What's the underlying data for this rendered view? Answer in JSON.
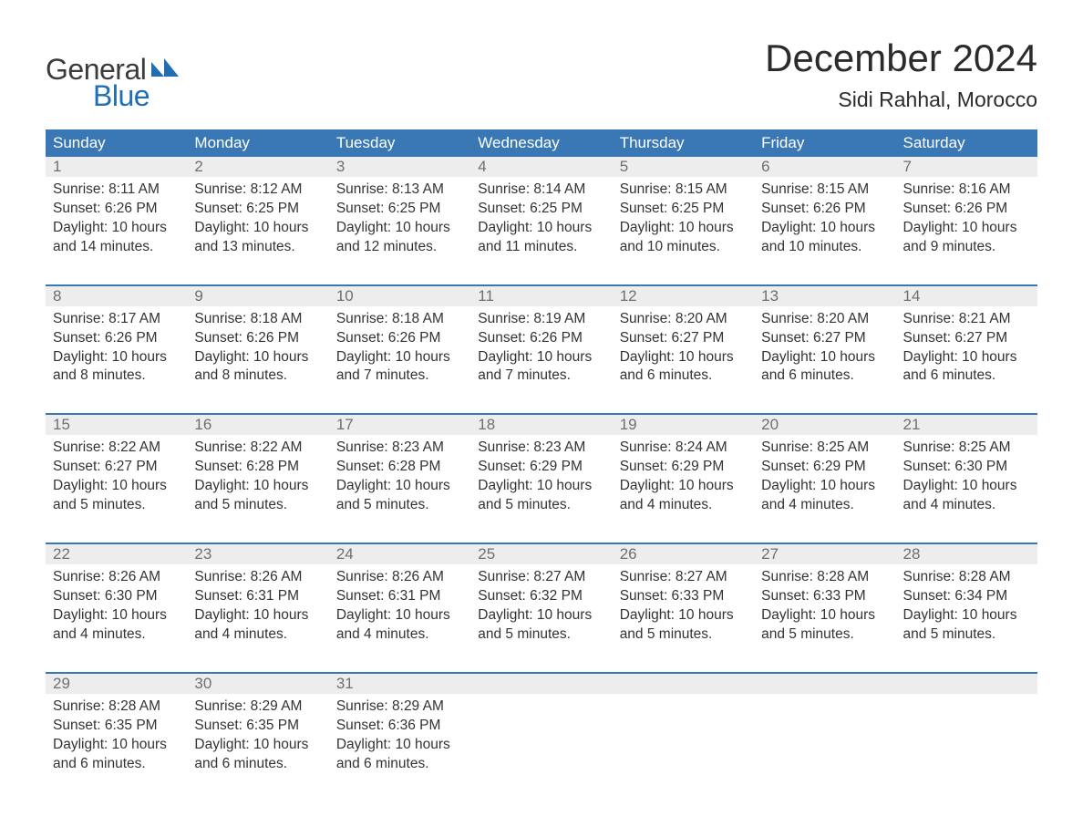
{
  "brand": {
    "word1": "General",
    "word2": "Blue",
    "logo_color": "#1f6fb2"
  },
  "title": "December 2024",
  "location": "Sidi Rahhal, Morocco",
  "colors": {
    "header_bg": "#3a78b5",
    "header_text": "#ffffff",
    "daynum_bg": "#ededed",
    "daynum_text": "#6f6f6f",
    "body_text": "#333333",
    "rule": "#3a78b5"
  },
  "dow": [
    "Sunday",
    "Monday",
    "Tuesday",
    "Wednesday",
    "Thursday",
    "Friday",
    "Saturday"
  ],
  "weeks": [
    [
      {
        "n": "1",
        "sr": "8:11 AM",
        "ss": "6:26 PM",
        "dl": "10 hours and 14 minutes."
      },
      {
        "n": "2",
        "sr": "8:12 AM",
        "ss": "6:25 PM",
        "dl": "10 hours and 13 minutes."
      },
      {
        "n": "3",
        "sr": "8:13 AM",
        "ss": "6:25 PM",
        "dl": "10 hours and 12 minutes."
      },
      {
        "n": "4",
        "sr": "8:14 AM",
        "ss": "6:25 PM",
        "dl": "10 hours and 11 minutes."
      },
      {
        "n": "5",
        "sr": "8:15 AM",
        "ss": "6:25 PM",
        "dl": "10 hours and 10 minutes."
      },
      {
        "n": "6",
        "sr": "8:15 AM",
        "ss": "6:26 PM",
        "dl": "10 hours and 10 minutes."
      },
      {
        "n": "7",
        "sr": "8:16 AM",
        "ss": "6:26 PM",
        "dl": "10 hours and 9 minutes."
      }
    ],
    [
      {
        "n": "8",
        "sr": "8:17 AM",
        "ss": "6:26 PM",
        "dl": "10 hours and 8 minutes."
      },
      {
        "n": "9",
        "sr": "8:18 AM",
        "ss": "6:26 PM",
        "dl": "10 hours and 8 minutes."
      },
      {
        "n": "10",
        "sr": "8:18 AM",
        "ss": "6:26 PM",
        "dl": "10 hours and 7 minutes."
      },
      {
        "n": "11",
        "sr": "8:19 AM",
        "ss": "6:26 PM",
        "dl": "10 hours and 7 minutes."
      },
      {
        "n": "12",
        "sr": "8:20 AM",
        "ss": "6:27 PM",
        "dl": "10 hours and 6 minutes."
      },
      {
        "n": "13",
        "sr": "8:20 AM",
        "ss": "6:27 PM",
        "dl": "10 hours and 6 minutes."
      },
      {
        "n": "14",
        "sr": "8:21 AM",
        "ss": "6:27 PM",
        "dl": "10 hours and 6 minutes."
      }
    ],
    [
      {
        "n": "15",
        "sr": "8:22 AM",
        "ss": "6:27 PM",
        "dl": "10 hours and 5 minutes."
      },
      {
        "n": "16",
        "sr": "8:22 AM",
        "ss": "6:28 PM",
        "dl": "10 hours and 5 minutes."
      },
      {
        "n": "17",
        "sr": "8:23 AM",
        "ss": "6:28 PM",
        "dl": "10 hours and 5 minutes."
      },
      {
        "n": "18",
        "sr": "8:23 AM",
        "ss": "6:29 PM",
        "dl": "10 hours and 5 minutes."
      },
      {
        "n": "19",
        "sr": "8:24 AM",
        "ss": "6:29 PM",
        "dl": "10 hours and 4 minutes."
      },
      {
        "n": "20",
        "sr": "8:25 AM",
        "ss": "6:29 PM",
        "dl": "10 hours and 4 minutes."
      },
      {
        "n": "21",
        "sr": "8:25 AM",
        "ss": "6:30 PM",
        "dl": "10 hours and 4 minutes."
      }
    ],
    [
      {
        "n": "22",
        "sr": "8:26 AM",
        "ss": "6:30 PM",
        "dl": "10 hours and 4 minutes."
      },
      {
        "n": "23",
        "sr": "8:26 AM",
        "ss": "6:31 PM",
        "dl": "10 hours and 4 minutes."
      },
      {
        "n": "24",
        "sr": "8:26 AM",
        "ss": "6:31 PM",
        "dl": "10 hours and 4 minutes."
      },
      {
        "n": "25",
        "sr": "8:27 AM",
        "ss": "6:32 PM",
        "dl": "10 hours and 5 minutes."
      },
      {
        "n": "26",
        "sr": "8:27 AM",
        "ss": "6:33 PM",
        "dl": "10 hours and 5 minutes."
      },
      {
        "n": "27",
        "sr": "8:28 AM",
        "ss": "6:33 PM",
        "dl": "10 hours and 5 minutes."
      },
      {
        "n": "28",
        "sr": "8:28 AM",
        "ss": "6:34 PM",
        "dl": "10 hours and 5 minutes."
      }
    ],
    [
      {
        "n": "29",
        "sr": "8:28 AM",
        "ss": "6:35 PM",
        "dl": "10 hours and 6 minutes."
      },
      {
        "n": "30",
        "sr": "8:29 AM",
        "ss": "6:35 PM",
        "dl": "10 hours and 6 minutes."
      },
      {
        "n": "31",
        "sr": "8:29 AM",
        "ss": "6:36 PM",
        "dl": "10 hours and 6 minutes."
      },
      null,
      null,
      null,
      null
    ]
  ],
  "labels": {
    "sunrise": "Sunrise:",
    "sunset": "Sunset:",
    "daylight": "Daylight:"
  }
}
